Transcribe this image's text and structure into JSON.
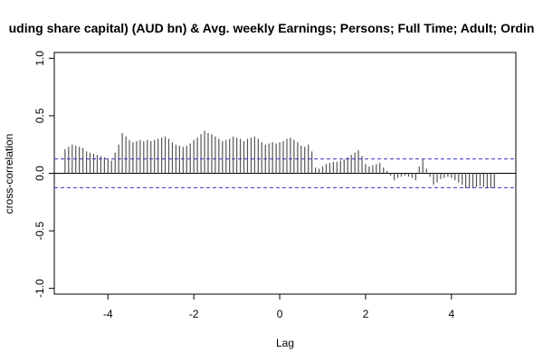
{
  "chart_data": {
    "type": "bar",
    "title": "uding share capital) (AUD bn)  & Avg. weekly Earnings; Persons; Full Time; Adult; Ordin",
    "xlabel": "Lag",
    "ylabel": "cross-correlation",
    "xlim": [
      -5.25,
      5.5
    ],
    "ylim": [
      -1.05,
      1.05
    ],
    "x_ticks": [
      "-4",
      "-2",
      "0",
      "2",
      "4"
    ],
    "y_ticks": [
      "-1.0",
      "-0.5",
      "0.0",
      "0.5",
      "1.0"
    ],
    "confidence_bound": 0.125,
    "lag_step": 0.08333,
    "lags": [
      -5.0,
      -4.917,
      -4.833,
      -4.75,
      -4.667,
      -4.583,
      -4.5,
      -4.417,
      -4.333,
      -4.25,
      -4.167,
      -4.083,
      -4.0,
      -3.917,
      -3.833,
      -3.75,
      -3.667,
      -3.583,
      -3.5,
      -3.417,
      -3.333,
      -3.25,
      -3.167,
      -3.083,
      -3.0,
      -2.917,
      -2.833,
      -2.75,
      -2.667,
      -2.583,
      -2.5,
      -2.417,
      -2.333,
      -2.25,
      -2.167,
      -2.083,
      -2.0,
      -1.917,
      -1.833,
      -1.75,
      -1.667,
      -1.583,
      -1.5,
      -1.417,
      -1.333,
      -1.25,
      -1.167,
      -1.083,
      -1.0,
      -0.917,
      -0.833,
      -0.75,
      -0.667,
      -0.583,
      -0.5,
      -0.417,
      -0.333,
      -0.25,
      -0.167,
      -0.083,
      0.0,
      0.083,
      0.167,
      0.25,
      0.333,
      0.417,
      0.5,
      0.583,
      0.667,
      0.75,
      0.833,
      0.917,
      1.0,
      1.083,
      1.167,
      1.25,
      1.333,
      1.417,
      1.5,
      1.583,
      1.667,
      1.75,
      1.833,
      1.917,
      2.0,
      2.083,
      2.167,
      2.25,
      2.333,
      2.417,
      2.5,
      2.583,
      2.667,
      2.75,
      2.833,
      2.917,
      3.0,
      3.083,
      3.167,
      3.25,
      3.333,
      3.417,
      3.5,
      3.583,
      3.667,
      3.75,
      3.833,
      3.917,
      4.0,
      4.083,
      4.167,
      4.25,
      4.333,
      4.417,
      4.5,
      4.583,
      4.667,
      4.75,
      4.833,
      4.917,
      5.0
    ],
    "values": [
      0.21,
      0.23,
      0.25,
      0.24,
      0.23,
      0.22,
      0.19,
      0.18,
      0.17,
      0.16,
      0.15,
      0.14,
      0.12,
      0.11,
      0.18,
      0.25,
      0.35,
      0.32,
      0.29,
      0.27,
      0.28,
      0.29,
      0.28,
      0.29,
      0.28,
      0.29,
      0.3,
      0.31,
      0.32,
      0.3,
      0.27,
      0.25,
      0.24,
      0.23,
      0.24,
      0.26,
      0.29,
      0.31,
      0.34,
      0.37,
      0.35,
      0.34,
      0.32,
      0.3,
      0.28,
      0.29,
      0.3,
      0.32,
      0.31,
      0.3,
      0.28,
      0.3,
      0.31,
      0.32,
      0.3,
      0.27,
      0.25,
      0.26,
      0.27,
      0.26,
      0.27,
      0.28,
      0.3,
      0.31,
      0.29,
      0.27,
      0.24,
      0.23,
      0.25,
      0.19,
      0.05,
      0.04,
      0.06,
      0.08,
      0.09,
      0.1,
      0.1,
      0.11,
      0.12,
      0.14,
      0.16,
      0.18,
      0.2,
      0.15,
      0.08,
      0.06,
      0.07,
      0.08,
      0.09,
      0.05,
      0.02,
      -0.02,
      -0.06,
      -0.04,
      -0.03,
      -0.02,
      -0.03,
      -0.04,
      -0.06,
      0.06,
      0.12,
      0.04,
      -0.03,
      -0.1,
      -0.08,
      -0.05,
      -0.04,
      -0.03,
      -0.04,
      -0.06,
      -0.08,
      -0.1,
      -0.13,
      -0.13,
      -0.13,
      -0.12,
      -0.11,
      -0.12,
      -0.13,
      -0.13,
      -0.13
    ],
    "colors": {
      "bars": "#555555",
      "bound": "#3333cc",
      "zero_line": "#000000",
      "frame": "#000000"
    },
    "grid": false,
    "legend": "none"
  }
}
